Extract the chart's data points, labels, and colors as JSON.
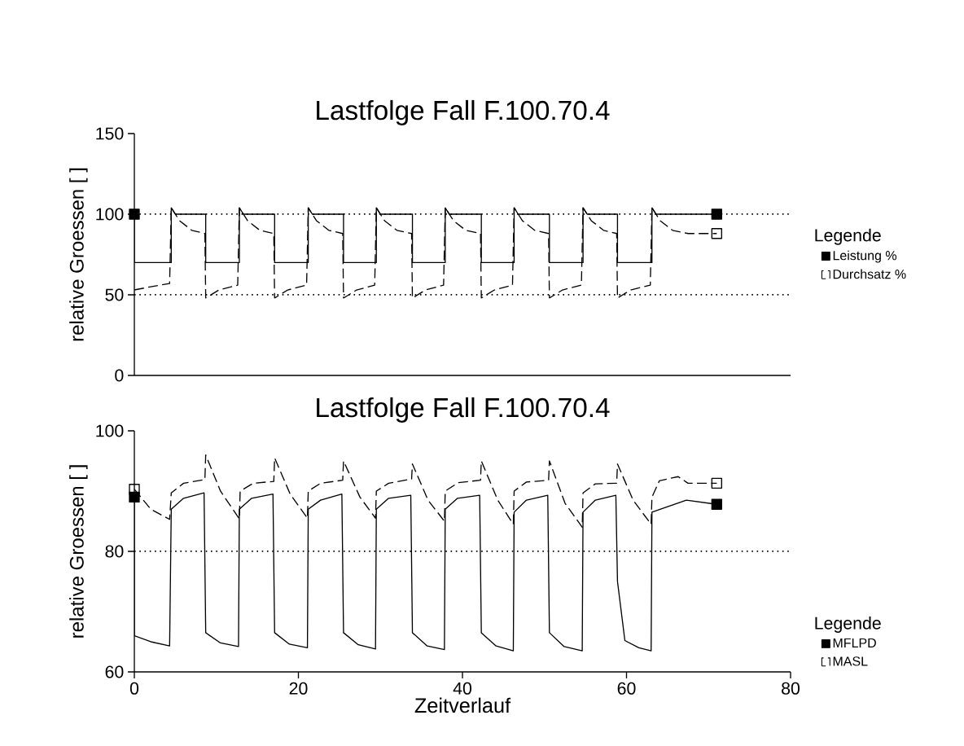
{
  "chart_data": [
    {
      "type": "line",
      "title": "Lastfolge Fall F.100.70.4",
      "ylabel": "relative Groessen [ ]",
      "legend_title": "Legende",
      "legend": "right",
      "tick_labels": "y",
      "xlim": [
        0,
        80
      ],
      "ylim": [
        0,
        150
      ],
      "yticks": [
        0,
        50,
        100,
        150
      ],
      "ref_lines": [
        {
          "axis": "y",
          "value": 100,
          "line_style": "dotted"
        },
        {
          "axis": "y",
          "value": 50,
          "line_style": "dotted"
        }
      ],
      "series": [
        {
          "name": "Leistung %",
          "color": "#000000",
          "line_style": "solid",
          "x": [
            0,
            0,
            4.5,
            4.5,
            5,
            8.7,
            8.7,
            12.8,
            12.8,
            13.3,
            17.1,
            17.1,
            21.2,
            21.2,
            21.7,
            25.5,
            25.5,
            29.5,
            29.5,
            30,
            33.9,
            33.9,
            37.9,
            37.9,
            38.4,
            42.3,
            42.3,
            46.3,
            46.3,
            46.8,
            50.6,
            50.6,
            54.7,
            54.7,
            55.2,
            58.9,
            58.9,
            63.1,
            63.1,
            63.6,
            71
          ],
          "values": [
            100,
            70,
            70,
            104,
            100,
            100,
            70,
            70,
            104,
            100,
            100,
            70,
            70,
            104,
            100,
            100,
            70,
            70,
            104,
            100,
            100,
            70,
            70,
            104,
            100,
            100,
            70,
            70,
            104,
            100,
            100,
            70,
            70,
            104,
            100,
            100,
            70,
            70,
            104,
            100,
            100
          ]
        },
        {
          "name": "Durchsatz %",
          "color": "#000000",
          "line_style": "dashed",
          "x": [
            0,
            2,
            4.3,
            4.5,
            5.5,
            7,
            8.6,
            8.7,
            10.3,
            12.6,
            12.8,
            13.8,
            15.3,
            17,
            17.1,
            18.7,
            21,
            21.2,
            22.2,
            23.7,
            25.4,
            25.5,
            27.1,
            29.3,
            29.5,
            30.5,
            32,
            33.8,
            33.9,
            35.5,
            37.7,
            37.9,
            38.9,
            40.4,
            42.2,
            42.3,
            43.9,
            46.1,
            46.3,
            47.3,
            48.8,
            50.5,
            50.6,
            52.2,
            54.5,
            54.7,
            55.7,
            57.2,
            58.8,
            58.9,
            60.5,
            62.9,
            63.1,
            64.1,
            65.6,
            67.5,
            71
          ],
          "values": [
            53,
            55,
            57,
            104,
            96,
            90,
            88,
            48,
            53,
            56,
            104,
            96,
            90,
            88,
            48,
            53,
            56,
            104,
            96,
            90,
            88,
            48,
            53,
            56,
            104,
            96,
            90,
            88,
            48,
            53,
            56,
            104,
            96,
            90,
            88,
            48,
            53,
            56,
            104,
            96,
            90,
            88,
            48,
            53,
            56,
            104,
            96,
            90,
            88,
            48,
            53,
            56,
            104,
            96,
            90,
            88,
            88
          ]
        },
        {
          "type": "scatter",
          "marker": "square",
          "color": "#000000",
          "x": [
            0,
            71
          ],
          "values": [
            100,
            100
          ]
        },
        {
          "type": "scatter",
          "marker": "square",
          "color": "#000000",
          "x": [
            71
          ],
          "values": [
            88
          ]
        }
      ]
    },
    {
      "type": "line",
      "title": "Lastfolge Fall F.100.70.4",
      "xlabel": "Zeitverlauf",
      "ylabel": "relative Groessen [ ]",
      "legend_title": "Legende",
      "legend": "bottom right",
      "xlim": [
        0,
        80
      ],
      "xticks": [
        0,
        20,
        40,
        60,
        80
      ],
      "ylim": [
        60,
        100
      ],
      "yticks": [
        60,
        80,
        100
      ],
      "ref_lines": [
        {
          "axis": "y",
          "value": 80,
          "line_style": "dotted"
        }
      ],
      "series": [
        {
          "name": "MFLPD",
          "color": "#000000",
          "line_style": "solid",
          "x": [
            0,
            0,
            2,
            4.3,
            4.5,
            6,
            8.5,
            8.7,
            10.5,
            12.7,
            12.8,
            14.3,
            16.9,
            17.1,
            18.9,
            21.1,
            21.2,
            22.7,
            25.3,
            25.5,
            27.3,
            29.4,
            29.5,
            31,
            33.7,
            33.9,
            35.7,
            37.8,
            37.9,
            39.4,
            42.1,
            42.3,
            44.1,
            46.2,
            46.3,
            47.8,
            50.4,
            50.6,
            52.4,
            54.6,
            54.7,
            56.2,
            58.7,
            58.9,
            59.8,
            61.5,
            63,
            63.1,
            64.8,
            67.3,
            71
          ],
          "values": [
            89,
            66,
            65,
            64.3,
            87,
            88.8,
            89.7,
            66.5,
            64.8,
            64.2,
            87,
            88.8,
            89.5,
            66.5,
            64.6,
            64,
            87,
            88.5,
            89.5,
            66.5,
            64.5,
            63.8,
            87,
            88.8,
            89.3,
            66.5,
            64.3,
            63.7,
            87,
            88.8,
            89.3,
            66.5,
            64.3,
            63.5,
            86.5,
            88.5,
            89.3,
            66.5,
            64.2,
            63.5,
            86.5,
            88.5,
            89.3,
            75,
            65.2,
            64,
            63.5,
            86.5,
            87.3,
            88.5,
            87.8
          ]
        },
        {
          "name": "MASL",
          "color": "#000000",
          "line_style": "dashed",
          "x": [
            0,
            2,
            4.3,
            4.5,
            6,
            8.6,
            8.7,
            10.5,
            12.8,
            12.9,
            14.5,
            17,
            17.1,
            19,
            21.1,
            21.2,
            22.7,
            25.4,
            25.5,
            27.5,
            29.4,
            29.5,
            31,
            33.8,
            33.9,
            35.8,
            37.8,
            37.9,
            39.5,
            42.2,
            42.3,
            44.3,
            46.2,
            46.3,
            47.8,
            50.5,
            50.6,
            52.5,
            54.6,
            54.7,
            56.2,
            58.8,
            58.9,
            60.8,
            63,
            63.1,
            64,
            66.3,
            67.5,
            71
          ],
          "values": [
            90.3,
            87,
            85.3,
            89.7,
            91.3,
            91.9,
            96,
            90,
            85.4,
            90,
            91.3,
            91.6,
            95.5,
            89.5,
            85.5,
            90,
            91.3,
            91.8,
            95,
            89,
            85.5,
            90,
            91.3,
            92,
            94.5,
            88.5,
            85,
            90,
            91.4,
            91.8,
            95,
            88.5,
            84.5,
            90,
            91.5,
            91.8,
            95,
            88,
            84,
            89.7,
            91.2,
            91.3,
            94.5,
            88.5,
            84.5,
            89,
            91.7,
            92.4,
            91.3,
            91.3
          ]
        },
        {
          "type": "scatter",
          "marker": "square",
          "color": "#000000",
          "x": [
            0,
            71
          ],
          "values": [
            89,
            87.8
          ]
        },
        {
          "type": "scatter",
          "marker": "square",
          "color": "#000000",
          "x": [
            0,
            71
          ],
          "values": [
            90.3,
            91.3
          ]
        }
      ]
    }
  ]
}
